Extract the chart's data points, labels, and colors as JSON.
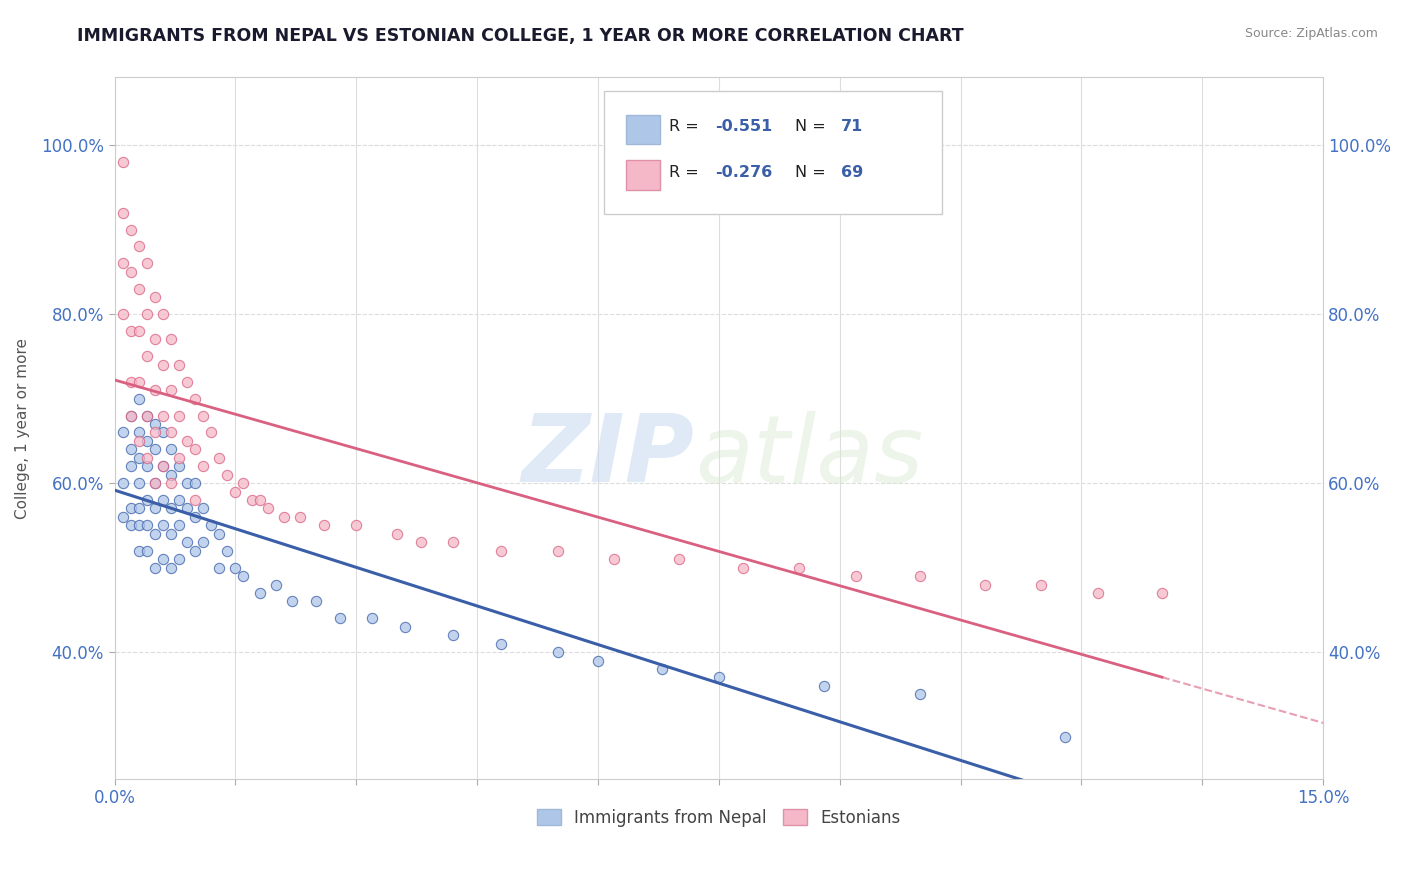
{
  "title": "IMMIGRANTS FROM NEPAL VS ESTONIAN COLLEGE, 1 YEAR OR MORE CORRELATION CHART",
  "source_text": "Source: ZipAtlas.com",
  "xlabel": "",
  "ylabel": "College, 1 year or more",
  "xlim": [
    0.0,
    0.15
  ],
  "ylim": [
    0.25,
    1.08
  ],
  "xticks": [
    0.0,
    0.015,
    0.03,
    0.045,
    0.06,
    0.075,
    0.09,
    0.105,
    0.12,
    0.135,
    0.15
  ],
  "xticklabels": [
    "0.0%",
    "",
    "",
    "",
    "",
    "",
    "",
    "",
    "",
    "",
    "15.0%"
  ],
  "yticks": [
    0.4,
    0.6,
    0.8,
    1.0
  ],
  "yticklabels": [
    "40.0%",
    "60.0%",
    "80.0%",
    "100.0%"
  ],
  "legend_R1": "-0.551",
  "legend_N1": "71",
  "legend_R2": "-0.276",
  "legend_N2": "69",
  "legend_label1": "Immigrants from Nepal",
  "legend_label2": "Estonians",
  "color_blue": "#aec6e8",
  "color_pink": "#f4b8c8",
  "line_color_blue": "#3a5fa8",
  "line_color_pink": "#d96080",
  "watermark_zip": "ZIP",
  "watermark_atlas": "atlas",
  "background_color": "#ffffff",
  "grid_color": "#dddddd",
  "nepal_x": [
    0.001,
    0.001,
    0.001,
    0.002,
    0.002,
    0.002,
    0.002,
    0.002,
    0.003,
    0.003,
    0.003,
    0.003,
    0.003,
    0.003,
    0.003,
    0.004,
    0.004,
    0.004,
    0.004,
    0.004,
    0.004,
    0.005,
    0.005,
    0.005,
    0.005,
    0.005,
    0.005,
    0.006,
    0.006,
    0.006,
    0.006,
    0.006,
    0.007,
    0.007,
    0.007,
    0.007,
    0.007,
    0.008,
    0.008,
    0.008,
    0.008,
    0.009,
    0.009,
    0.009,
    0.01,
    0.01,
    0.01,
    0.011,
    0.011,
    0.012,
    0.013,
    0.013,
    0.014,
    0.015,
    0.016,
    0.018,
    0.02,
    0.022,
    0.025,
    0.028,
    0.032,
    0.036,
    0.042,
    0.048,
    0.055,
    0.06,
    0.068,
    0.075,
    0.088,
    0.1,
    0.118
  ],
  "nepal_y": [
    0.66,
    0.6,
    0.56,
    0.68,
    0.64,
    0.62,
    0.57,
    0.55,
    0.7,
    0.66,
    0.63,
    0.6,
    0.57,
    0.55,
    0.52,
    0.68,
    0.65,
    0.62,
    0.58,
    0.55,
    0.52,
    0.67,
    0.64,
    0.6,
    0.57,
    0.54,
    0.5,
    0.66,
    0.62,
    0.58,
    0.55,
    0.51,
    0.64,
    0.61,
    0.57,
    0.54,
    0.5,
    0.62,
    0.58,
    0.55,
    0.51,
    0.6,
    0.57,
    0.53,
    0.6,
    0.56,
    0.52,
    0.57,
    0.53,
    0.55,
    0.54,
    0.5,
    0.52,
    0.5,
    0.49,
    0.47,
    0.48,
    0.46,
    0.46,
    0.44,
    0.44,
    0.43,
    0.42,
    0.41,
    0.4,
    0.39,
    0.38,
    0.37,
    0.36,
    0.35,
    0.3
  ],
  "estonian_x": [
    0.001,
    0.001,
    0.001,
    0.001,
    0.002,
    0.002,
    0.002,
    0.002,
    0.002,
    0.003,
    0.003,
    0.003,
    0.003,
    0.003,
    0.004,
    0.004,
    0.004,
    0.004,
    0.004,
    0.005,
    0.005,
    0.005,
    0.005,
    0.005,
    0.006,
    0.006,
    0.006,
    0.006,
    0.007,
    0.007,
    0.007,
    0.007,
    0.008,
    0.008,
    0.008,
    0.009,
    0.009,
    0.01,
    0.01,
    0.01,
    0.011,
    0.011,
    0.012,
    0.013,
    0.014,
    0.015,
    0.016,
    0.017,
    0.018,
    0.019,
    0.021,
    0.023,
    0.026,
    0.03,
    0.035,
    0.038,
    0.042,
    0.048,
    0.055,
    0.062,
    0.07,
    0.078,
    0.085,
    0.092,
    0.1,
    0.108,
    0.115,
    0.122,
    0.13
  ],
  "estonian_y": [
    0.98,
    0.92,
    0.86,
    0.8,
    0.9,
    0.85,
    0.78,
    0.72,
    0.68,
    0.88,
    0.83,
    0.78,
    0.72,
    0.65,
    0.86,
    0.8,
    0.75,
    0.68,
    0.63,
    0.82,
    0.77,
    0.71,
    0.66,
    0.6,
    0.8,
    0.74,
    0.68,
    0.62,
    0.77,
    0.71,
    0.66,
    0.6,
    0.74,
    0.68,
    0.63,
    0.72,
    0.65,
    0.7,
    0.64,
    0.58,
    0.68,
    0.62,
    0.66,
    0.63,
    0.61,
    0.59,
    0.6,
    0.58,
    0.58,
    0.57,
    0.56,
    0.56,
    0.55,
    0.55,
    0.54,
    0.53,
    0.53,
    0.52,
    0.52,
    0.51,
    0.51,
    0.5,
    0.5,
    0.49,
    0.49,
    0.48,
    0.48,
    0.47,
    0.47
  ]
}
